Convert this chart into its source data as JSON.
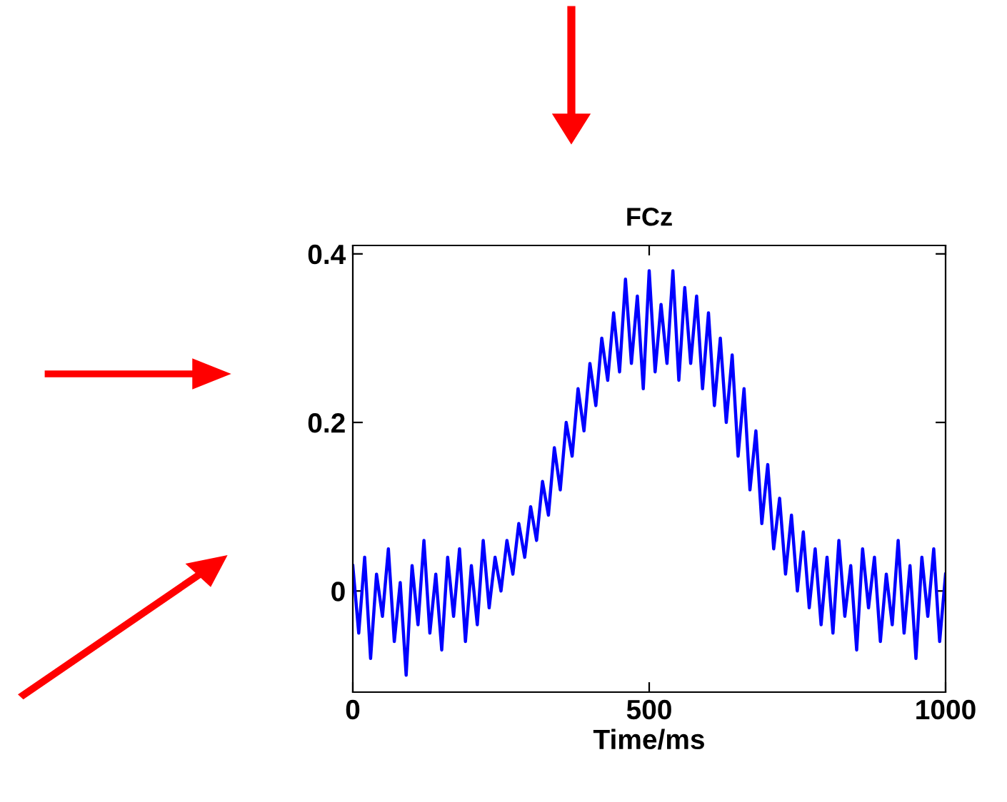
{
  "chart_data": {
    "type": "line",
    "title": "FCz",
    "xlabel": "Time/ms",
    "x": [
      0,
      10,
      20,
      30,
      40,
      50,
      60,
      70,
      80,
      90,
      100,
      110,
      120,
      130,
      140,
      150,
      160,
      170,
      180,
      190,
      200,
      210,
      220,
      230,
      240,
      250,
      260,
      270,
      280,
      290,
      300,
      310,
      320,
      330,
      340,
      350,
      360,
      370,
      380,
      390,
      400,
      410,
      420,
      430,
      440,
      450,
      460,
      470,
      480,
      490,
      500,
      510,
      520,
      530,
      540,
      550,
      560,
      570,
      580,
      590,
      600,
      610,
      620,
      630,
      640,
      650,
      660,
      670,
      680,
      690,
      700,
      710,
      720,
      730,
      740,
      750,
      760,
      770,
      780,
      790,
      800,
      810,
      820,
      830,
      840,
      850,
      860,
      870,
      880,
      890,
      900,
      910,
      920,
      930,
      940,
      950,
      960,
      970,
      980,
      990,
      1000
    ],
    "series": [
      {
        "color": "#0000ff",
        "values": [
          0.03,
          -0.05,
          0.04,
          -0.08,
          0.02,
          -0.03,
          0.05,
          -0.06,
          0.01,
          -0.1,
          0.03,
          -0.04,
          0.06,
          -0.05,
          0.02,
          -0.07,
          0.04,
          -0.03,
          0.05,
          -0.06,
          0.03,
          -0.04,
          0.06,
          -0.02,
          0.04,
          0.0,
          0.06,
          0.02,
          0.08,
          0.04,
          0.1,
          0.06,
          0.13,
          0.09,
          0.17,
          0.12,
          0.2,
          0.16,
          0.24,
          0.19,
          0.27,
          0.22,
          0.3,
          0.25,
          0.33,
          0.26,
          0.37,
          0.27,
          0.35,
          0.24,
          0.38,
          0.26,
          0.34,
          0.27,
          0.38,
          0.25,
          0.36,
          0.27,
          0.35,
          0.24,
          0.33,
          0.22,
          0.3,
          0.2,
          0.28,
          0.16,
          0.24,
          0.12,
          0.19,
          0.08,
          0.15,
          0.05,
          0.11,
          0.02,
          0.09,
          0.0,
          0.07,
          -0.02,
          0.05,
          -0.04,
          0.04,
          -0.05,
          0.06,
          -0.03,
          0.03,
          -0.07,
          0.05,
          -0.02,
          0.04,
          -0.06,
          0.02,
          -0.04,
          0.06,
          -0.05,
          0.03,
          -0.08,
          0.04,
          -0.03,
          0.05,
          -0.06,
          0.02
        ]
      }
    ],
    "xlim": [
      0,
      1000
    ],
    "ylim": [
      -0.12,
      0.41
    ],
    "xticks": [
      0,
      500,
      1000
    ],
    "yticks": [
      0,
      0.2,
      0.4
    ],
    "grid": false,
    "legend": false,
    "marker": "none",
    "line_style": "solid"
  }
}
